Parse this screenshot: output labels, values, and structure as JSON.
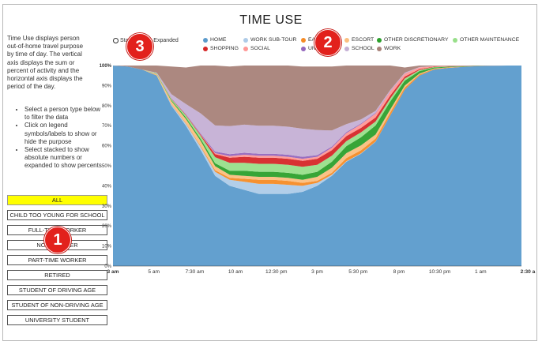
{
  "title": "TIME USE",
  "description": "Time Use displays person out-of-home travel purpose by time of day. The vertical axis displays the sum or percent of activity and the horizontal axis displays the period of the day.",
  "instructions": [
    "Select a person type below to filter the data",
    "Click on legend symbols/labels to show or hide the purpose",
    "Select stacked to show absolute numbers or expanded to show percents"
  ],
  "mode": {
    "stacked_label": "Stacked",
    "expanded_label": "Expanded",
    "selected": "Expanded"
  },
  "person_types": [
    {
      "label": "ALL",
      "active": true
    },
    {
      "label": "CHILD TOO YOUNG FOR SCHOOL",
      "active": false
    },
    {
      "label": "FULL-TIME WORKER",
      "active": false
    },
    {
      "label": "NON-WORKER",
      "active": false
    },
    {
      "label": "PART-TIME WORKER",
      "active": false
    },
    {
      "label": "RETIRED",
      "active": false
    },
    {
      "label": "STUDENT OF DRIVING AGE",
      "active": false
    },
    {
      "label": "STUDENT OF NON-DRIVING AGE",
      "active": false
    },
    {
      "label": "UNIVERSITY STUDENT",
      "active": false
    }
  ],
  "callouts": [
    "1",
    "2",
    "3"
  ],
  "chart_data": {
    "type": "area",
    "title": "TIME USE",
    "xlabel": "",
    "ylabel": "",
    "ylim": [
      0,
      100
    ],
    "y_ticks": [
      "0%",
      "10%",
      "20%",
      "30%",
      "40%",
      "50%",
      "60%",
      "70%",
      "80%",
      "90%",
      "100%"
    ],
    "x_ticks": [
      "3 am",
      "5 am",
      "7:30 am",
      "10 am",
      "12:30 pm",
      "3 pm",
      "5:30 pm",
      "8 pm",
      "10:30 pm",
      "1 am",
      "2:30 a"
    ],
    "legend_placement": "top",
    "x": [
      "3 am",
      "4 am",
      "5 am",
      "6 am",
      "7 am",
      "7:30 am",
      "8 am",
      "9 am",
      "10 am",
      "11 am",
      "12 pm",
      "12:30 pm",
      "1 pm",
      "2 pm",
      "3 pm",
      "4 pm",
      "5 pm",
      "5:30 pm",
      "6 pm",
      "7 pm",
      "8 pm",
      "9 pm",
      "10 pm",
      "10:30 pm",
      "11 pm",
      "12 am",
      "1 am",
      "2 am",
      "2:30 a"
    ],
    "series": [
      {
        "name": "HOME",
        "color": "#5b9bcc",
        "values": [
          100,
          99.5,
          98,
          95,
          80,
          70,
          58,
          45,
          40,
          38,
          36,
          36,
          36,
          37,
          40,
          45,
          52,
          56,
          62,
          75,
          88,
          95,
          98,
          98.8,
          99.3,
          99.7,
          99.9,
          100,
          100
        ]
      },
      {
        "name": "WORK SUB-TOUR",
        "color": "#aecbe8",
        "values": [
          0,
          0,
          0,
          0,
          0.5,
          1,
          1.5,
          2,
          3,
          4,
          5,
          5,
          4.5,
          3,
          1.5,
          0.5,
          0.3,
          0.2,
          0.1,
          0,
          0,
          0,
          0,
          0,
          0,
          0,
          0,
          0,
          0
        ]
      },
      {
        "name": "EAT OUT",
        "color": "#f58b25",
        "values": [
          0,
          0,
          0,
          0.2,
          0.3,
          0.3,
          0.5,
          0.8,
          1,
          1.5,
          2,
          2,
          2,
          1.5,
          1,
          1,
          1.5,
          1.5,
          1.5,
          1.5,
          1,
          0.5,
          0.3,
          0.2,
          0.1,
          0,
          0,
          0,
          0
        ]
      },
      {
        "name": "ESCORT",
        "color": "#fbbf80",
        "values": [
          0,
          0,
          0,
          0.5,
          1.5,
          2,
          2.5,
          2,
          1.5,
          1.5,
          1.5,
          1.5,
          1.5,
          1.5,
          2,
          2.5,
          2.5,
          2.5,
          2,
          1.5,
          1,
          0.5,
          0.2,
          0.1,
          0,
          0,
          0,
          0,
          0
        ]
      },
      {
        "name": "OTHER DISCRETIONARY",
        "color": "#2ca02c",
        "values": [
          0,
          0,
          0,
          0.2,
          0.5,
          0.8,
          1,
          1.5,
          2,
          2.5,
          2.5,
          2.5,
          2.5,
          2.5,
          2.5,
          3,
          3.5,
          4,
          4.5,
          4,
          2.5,
          1.2,
          0.5,
          0.3,
          0.2,
          0.1,
          0,
          0,
          0
        ]
      },
      {
        "name": "OTHER MAINTENANCE",
        "color": "#98df8a",
        "values": [
          0,
          0,
          0,
          0.2,
          0.5,
          1,
          1.5,
          3,
          4,
          4,
          4,
          4,
          4,
          4,
          3.5,
          3,
          2.5,
          2.5,
          2,
          1.5,
          1,
          0.5,
          0.2,
          0.1,
          0,
          0,
          0,
          0,
          0
        ]
      },
      {
        "name": "SHOPPING",
        "color": "#d62728",
        "values": [
          0,
          0,
          0,
          0,
          0.2,
          0.3,
          0.5,
          1.5,
          2.5,
          3,
          3,
          3,
          3,
          3,
          3,
          2.8,
          2.5,
          2.2,
          2,
          1.5,
          1,
          0.5,
          0.2,
          0.1,
          0,
          0,
          0,
          0,
          0
        ]
      },
      {
        "name": "SOCIAL",
        "color": "#ff9896",
        "values": [
          0,
          0,
          0,
          0,
          0,
          0.1,
          0.2,
          0.5,
          0.8,
          1,
          1,
          1,
          1,
          1,
          1,
          1.2,
          1.5,
          1.8,
          2,
          2,
          1.5,
          0.8,
          0.3,
          0.2,
          0.1,
          0,
          0,
          0,
          0
        ]
      },
      {
        "name": "UNIVERSITY",
        "color": "#9467bd",
        "values": [
          0,
          0,
          0,
          0,
          0.2,
          0.3,
          0.5,
          0.8,
          1,
          1,
          1,
          1,
          1,
          1,
          0.8,
          0.6,
          0.5,
          0.4,
          0.3,
          0.2,
          0.1,
          0,
          0,
          0,
          0,
          0,
          0,
          0,
          0
        ]
      },
      {
        "name": "SCHOOL",
        "color": "#c5b0d5",
        "values": [
          0,
          0,
          0,
          0.3,
          2,
          5,
          10,
          13,
          14,
          14,
          14,
          14,
          14,
          14,
          12.5,
          8,
          4,
          2,
          1,
          0.5,
          0.3,
          0.2,
          0,
          0,
          0,
          0,
          0,
          0,
          0
        ]
      },
      {
        "name": "WORK",
        "color": "#a88279",
        "values": [
          0,
          0.5,
          2,
          3.6,
          13.8,
          18.2,
          23.8,
          30.9,
          29.7,
          29.5,
          30,
          30,
          30.5,
          31,
          31.7,
          31.9,
          32.7,
          32.9,
          32.6,
          31.8,
          2.6,
          0.8,
          0.3,
          0.2,
          0.3,
          0.2,
          0.1,
          0,
          0
        ]
      }
    ]
  }
}
